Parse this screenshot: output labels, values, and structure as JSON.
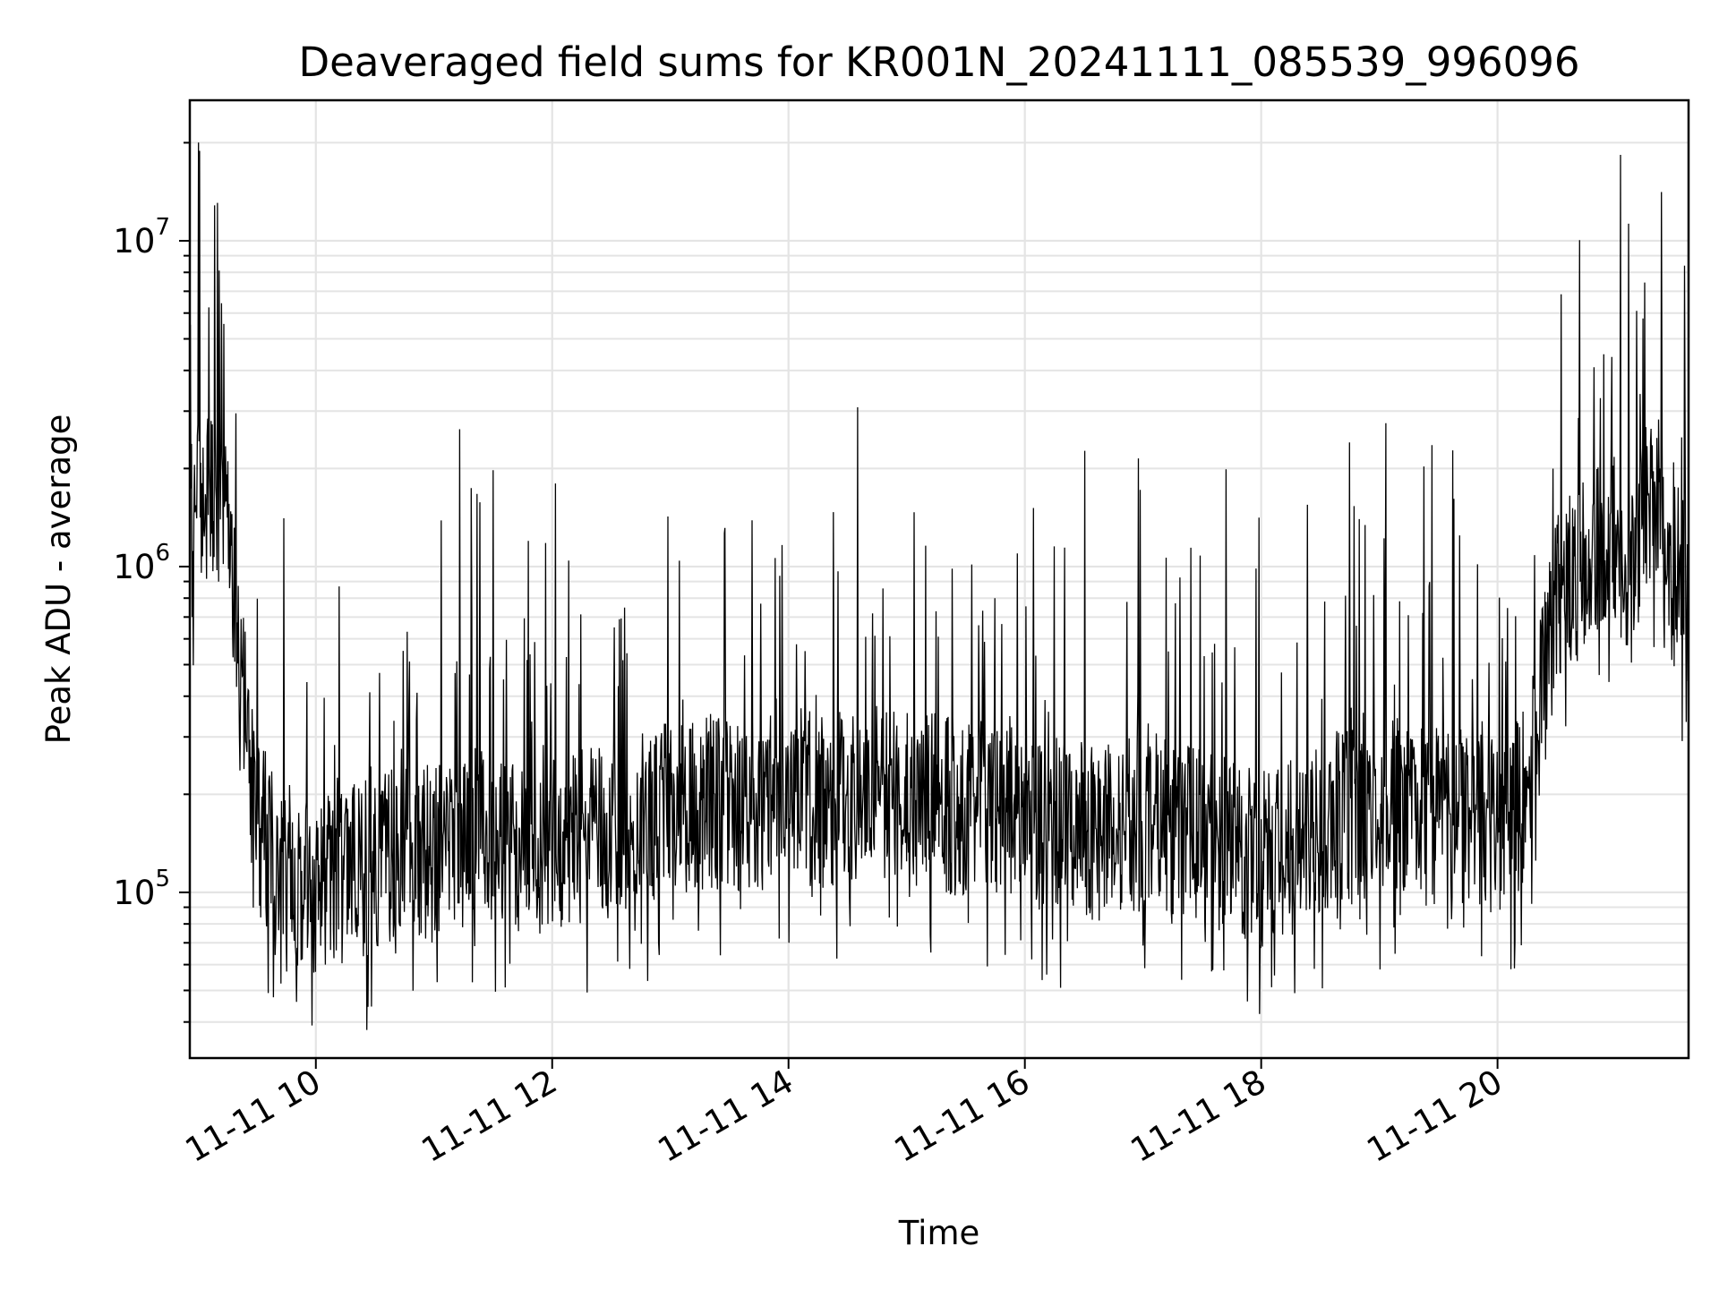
{
  "chart_data": {
    "type": "line",
    "title": "Deaveraged field sums for KR001N_20241111_085539_996096",
    "xlabel": "Time",
    "ylabel": "Peak ADU - average",
    "y_scale": "log",
    "grid": "on (major and minor, both axes)",
    "legend": "none",
    "line_color": "#000000",
    "xlim": [
      "2024-11-11 08:56",
      "2024-11-11 21:37"
    ],
    "ylim": [
      31000,
      27000000
    ],
    "x_ticks": [
      {
        "value": "2024-11-11 10:00",
        "label": "11-11 10"
      },
      {
        "value": "2024-11-11 12:00",
        "label": "11-11 12"
      },
      {
        "value": "2024-11-11 14:00",
        "label": "11-11 14"
      },
      {
        "value": "2024-11-11 16:00",
        "label": "11-11 16"
      },
      {
        "value": "2024-11-11 18:00",
        "label": "11-11 18"
      },
      {
        "value": "2024-11-11 20:00",
        "label": "11-11 20"
      }
    ],
    "y_ticks": [
      {
        "value": 100000,
        "base": "10",
        "exp": "5"
      },
      {
        "value": 1000000,
        "base": "10",
        "exp": "6"
      },
      {
        "value": 10000000,
        "base": "10",
        "exp": "7"
      }
    ],
    "series": [
      {
        "x": [
          "2024-11-11 08:56",
          "2024-11-11 09:00",
          "2024-11-11 09:04",
          "2024-11-11 09:08",
          "2024-11-11 09:12",
          "2024-11-11 09:16",
          "2024-11-11 09:20",
          "2024-11-11 09:24",
          "2024-11-11 09:30",
          "2024-11-11 09:40",
          "2024-11-11 09:50",
          "2024-11-11 10:00",
          "2024-11-11 10:15",
          "2024-11-11 10:30",
          "2024-11-11 10:45",
          "2024-11-11 11:00",
          "2024-11-11 11:15",
          "2024-11-11 11:30",
          "2024-11-11 11:45",
          "2024-11-11 12:00",
          "2024-11-11 12:20",
          "2024-11-11 12:40",
          "2024-11-11 13:00",
          "2024-11-11 13:20",
          "2024-11-11 13:40",
          "2024-11-11 14:00",
          "2024-11-11 14:20",
          "2024-11-11 14:40",
          "2024-11-11 15:00",
          "2024-11-11 15:20",
          "2024-11-11 15:40",
          "2024-11-11 16:00",
          "2024-11-11 16:20",
          "2024-11-11 16:40",
          "2024-11-11 17:00",
          "2024-11-11 17:20",
          "2024-11-11 17:40",
          "2024-11-11 18:00",
          "2024-11-11 18:20",
          "2024-11-11 18:40",
          "2024-11-11 19:00",
          "2024-11-11 19:20",
          "2024-11-11 19:40",
          "2024-11-11 20:00",
          "2024-11-11 20:15",
          "2024-11-11 20:30",
          "2024-11-11 20:45",
          "2024-11-11 21:00",
          "2024-11-11 21:10",
          "2024-11-11 21:15",
          "2024-11-11 21:20",
          "2024-11-11 21:25",
          "2024-11-11 21:30",
          "2024-11-11 21:37"
        ],
        "y": [
          1200000,
          1600000,
          1500000,
          1800000,
          1400000,
          1200000,
          700000,
          350000,
          160000,
          130000,
          110000,
          100000,
          115000,
          120000,
          140000,
          130000,
          160000,
          150000,
          130000,
          140000,
          150000,
          160000,
          180000,
          190000,
          175000,
          200000,
          190000,
          210000,
          200000,
          185000,
          180000,
          170000,
          160000,
          150000,
          165000,
          160000,
          140000,
          125000,
          140000,
          170000,
          180000,
          190000,
          175000,
          160000,
          200000,
          800000,
          1000000,
          1200000,
          900000,
          1600000,
          1800000,
          1300000,
          1100000,
          750000
        ]
      }
    ]
  }
}
